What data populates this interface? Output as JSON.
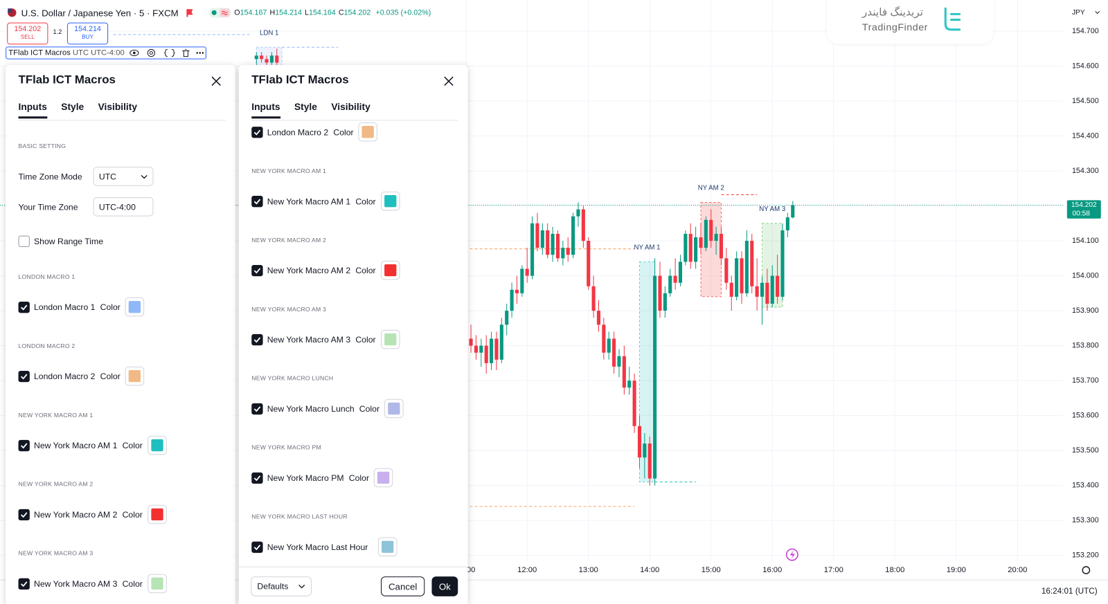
{
  "header": {
    "symbol": "U.S. Dollar / Japanese Yen · 5 · FXCM",
    "ohlc": [
      {
        "label": "O",
        "value": "154.167"
      },
      {
        "label": "H",
        "value": "154.214"
      },
      {
        "label": "L",
        "value": "154.164"
      },
      {
        "label": "C",
        "value": "154.202"
      }
    ],
    "change": "+0.035 (+0.02%)",
    "value_color": "#089981"
  },
  "order_panel": {
    "sell_price": "154.202",
    "sell_label": "SELL",
    "spread": "1.2",
    "buy_price": "154.214",
    "buy_label": "BUY"
  },
  "indicator_legend": {
    "name": "TFlab ICT Macros",
    "args": "UTC UTC-4:00"
  },
  "logo": {
    "persian": "تریدینگ فایندر",
    "latin": "TradingFinder"
  },
  "chart_data": {
    "type": "candlestick",
    "currency": "JPY",
    "up_color": "#089981",
    "down_color": "#f23645",
    "grid": true,
    "xlim": [
      "03:24",
      "20:45"
    ],
    "ylim": [
      153.184,
      154.789
    ],
    "xticks": [
      "11:00",
      "12:00",
      "13:00",
      "14:00",
      "15:00",
      "16:00",
      "17:00",
      "18:00",
      "19:00",
      "20:00"
    ],
    "yticks": [
      {
        "value": 153.2,
        "label": "153.200"
      },
      {
        "value": 153.3,
        "label": "153.300"
      },
      {
        "value": 153.4,
        "label": "153.400"
      },
      {
        "value": 153.5,
        "label": "153.500"
      },
      {
        "value": 153.6,
        "label": "153.600"
      },
      {
        "value": 153.7,
        "label": "153.700"
      },
      {
        "value": 153.8,
        "label": "153.800"
      },
      {
        "value": 153.9,
        "label": "153.900"
      },
      {
        "value": 154.0,
        "label": "154.000"
      },
      {
        "value": 154.1,
        "label": "154.100"
      },
      {
        "value": 154.2,
        "label": "154.200"
      },
      {
        "value": 154.3,
        "label": "154.300"
      },
      {
        "value": 154.4,
        "label": "154.400"
      },
      {
        "value": 154.5,
        "label": "154.500"
      },
      {
        "value": 154.6,
        "label": "154.600"
      },
      {
        "value": 154.7,
        "label": "154.700"
      }
    ],
    "candles": {
      "x": [
        "07:35",
        "07:40",
        "07:45",
        "07:50",
        "07:55",
        "11:05",
        "11:10",
        "11:15",
        "11:20",
        "11:25",
        "11:30",
        "11:35",
        "11:40",
        "11:45",
        "11:50",
        "11:55",
        "12:00",
        "12:05",
        "12:10",
        "12:15",
        "12:20",
        "12:25",
        "12:30",
        "12:35",
        "12:40",
        "12:45",
        "12:50",
        "12:55",
        "13:00",
        "13:05",
        "13:10",
        "13:15",
        "13:20",
        "13:25",
        "13:30",
        "13:35",
        "13:40",
        "13:45",
        "13:50",
        "13:55",
        "14:00",
        "14:05",
        "14:10",
        "14:15",
        "14:20",
        "14:25",
        "14:30",
        "14:35",
        "14:40",
        "14:45",
        "14:50",
        "14:55",
        "15:00",
        "15:05",
        "15:10",
        "15:15",
        "15:20",
        "15:25",
        "15:30",
        "15:35",
        "15:40",
        "15:45",
        "15:50",
        "15:55",
        "16:00",
        "16:05",
        "16:10",
        "16:15",
        "16:20"
      ],
      "open": [
        154.62,
        154.63,
        154.62,
        154.61,
        154.63,
        153.82,
        153.8,
        153.78,
        153.8,
        153.75,
        153.82,
        153.76,
        153.86,
        153.9,
        153.96,
        153.95,
        154.02,
        154.0,
        154.15,
        154.08,
        154.13,
        154.06,
        154.12,
        154.05,
        154.08,
        154.06,
        154.17,
        154.19,
        154.1,
        153.97,
        153.9,
        153.86,
        153.78,
        153.82,
        153.74,
        153.77,
        153.68,
        153.7,
        153.57,
        153.48,
        153.52,
        153.42,
        154.0,
        153.9,
        153.95,
        154.0,
        153.98,
        154.04,
        154.12,
        154.04,
        154.11,
        154.08,
        154.16,
        154.1,
        154.12,
        154.05,
        153.98,
        153.94,
        154.05,
        153.95,
        154.1,
        153.97,
        153.94,
        153.98,
        153.92,
        154.0,
        153.94,
        154.13,
        154.167
      ],
      "high": [
        154.64,
        154.64,
        154.63,
        154.64,
        154.65,
        153.86,
        153.83,
        153.82,
        153.83,
        153.84,
        153.84,
        153.88,
        153.92,
        153.98,
        154.0,
        154.03,
        154.08,
        154.17,
        154.18,
        154.15,
        154.15,
        154.14,
        154.13,
        154.1,
        154.11,
        154.18,
        154.21,
        154.2,
        154.11,
        154.0,
        153.93,
        153.88,
        153.84,
        153.84,
        153.79,
        153.8,
        153.74,
        153.72,
        153.6,
        153.55,
        153.54,
        154.05,
        154.04,
        153.97,
        154.02,
        154.05,
        154.06,
        154.13,
        154.15,
        154.14,
        154.15,
        154.17,
        154.19,
        154.14,
        154.14,
        154.08,
        154.0,
        154.07,
        154.07,
        154.13,
        154.12,
        154.05,
        154.0,
        154.02,
        154.03,
        154.06,
        154.15,
        154.18,
        154.214
      ],
      "low": [
        154.6,
        154.61,
        154.59,
        154.6,
        154.6,
        153.78,
        153.76,
        153.74,
        153.72,
        153.73,
        153.73,
        153.75,
        153.83,
        153.88,
        153.92,
        153.94,
        153.98,
        153.99,
        154.07,
        154.06,
        154.05,
        154.04,
        154.04,
        154.03,
        154.04,
        154.05,
        154.14,
        154.08,
        153.96,
        153.88,
        153.84,
        153.76,
        153.76,
        153.72,
        153.71,
        153.66,
        153.66,
        153.55,
        153.45,
        153.42,
        153.4,
        153.4,
        153.88,
        153.88,
        153.94,
        153.96,
        153.97,
        154.03,
        154.02,
        154.02,
        154.06,
        154.07,
        154.08,
        154.06,
        154.03,
        153.96,
        153.9,
        153.93,
        153.92,
        153.94,
        153.95,
        153.9,
        153.86,
        153.9,
        153.91,
        153.92,
        153.93,
        154.11,
        154.164
      ],
      "close": [
        154.63,
        154.62,
        154.61,
        154.63,
        154.61,
        153.8,
        153.78,
        153.8,
        153.75,
        153.82,
        153.76,
        153.86,
        153.9,
        153.96,
        153.95,
        154.02,
        154.0,
        154.15,
        154.08,
        154.13,
        154.06,
        154.12,
        154.05,
        154.08,
        154.06,
        154.17,
        154.19,
        154.1,
        153.97,
        153.9,
        153.86,
        153.78,
        153.82,
        153.74,
        153.77,
        153.68,
        153.7,
        153.57,
        153.48,
        153.52,
        153.42,
        154.0,
        153.9,
        153.95,
        154.0,
        153.98,
        154.04,
        154.12,
        154.04,
        154.11,
        154.08,
        154.16,
        154.1,
        154.12,
        154.05,
        153.98,
        153.94,
        154.05,
        153.95,
        154.1,
        153.97,
        153.94,
        153.98,
        153.92,
        154.0,
        153.94,
        154.13,
        154.167,
        154.202
      ]
    },
    "label_color": "#1e3a6e",
    "sessions": [
      {
        "label": "LDN 1",
        "start": "07:35",
        "end": "08:00",
        "high": 154.654,
        "low": 154.59,
        "color": "#90b8f8"
      },
      {
        "label": "NY AM 1",
        "start": "13:50",
        "end": "14:05",
        "high": 154.04,
        "low": 153.41,
        "color": "#1fbfbf"
      },
      {
        "label": "NY AM 2",
        "start": "14:50",
        "end": "15:10",
        "high": 154.21,
        "low": 153.94,
        "color": "#f23030"
      },
      {
        "label": "NY AM 3",
        "start": "15:50",
        "end": "16:10",
        "high": 154.15,
        "low": 153.91,
        "color": "#6cc267"
      }
    ],
    "levels": [
      {
        "value": 154.69,
        "start": "05:15",
        "end": "07:30",
        "color": "#90b8f8"
      },
      {
        "value": 154.654,
        "start": "08:00",
        "end": "08:55",
        "color": "#90b8f8"
      },
      {
        "value": 154.077,
        "start": "07:55",
        "end": "13:45",
        "color": "#f5a76c"
      },
      {
        "value": 153.34,
        "start": "07:55",
        "end": "13:45",
        "color": "#f5a76c"
      },
      {
        "value": 153.41,
        "start": "14:05",
        "end": "14:45",
        "color": "#1fbfbf"
      },
      {
        "value": 154.232,
        "start": "15:10",
        "end": "15:45",
        "color": "#f23030"
      }
    ],
    "last_price": {
      "value": 154.202,
      "countdown": "00:58"
    },
    "clock": "16:24:01 (UTC)"
  },
  "dialogs": [
    {
      "title": "TFlab ICT Macros",
      "tabs": [
        "Inputs",
        "Style",
        "Visibility"
      ],
      "active_tab": 0,
      "items": [
        {
          "type": "section",
          "text": "BASIC SETTING"
        },
        {
          "type": "select",
          "label": "Time Zone Mode",
          "value": "UTC"
        },
        {
          "type": "input",
          "label": "Your Time Zone",
          "value": "UTC-4:00"
        },
        {
          "type": "checkbox",
          "label": "Show Range Time",
          "checked": false
        },
        {
          "type": "section",
          "text": "LONDON MACRO 1"
        },
        {
          "type": "checkbox",
          "label": "London Macro 1",
          "checked": true,
          "color_label": "Color",
          "color": "#90b8f8"
        },
        {
          "type": "section",
          "text": "LONDON MACRO 2"
        },
        {
          "type": "checkbox",
          "label": "London Macro 2",
          "checked": true,
          "color_label": "Color",
          "color": "#f0b985"
        },
        {
          "type": "section",
          "text": "NEW YORK MACRO AM 1"
        },
        {
          "type": "checkbox",
          "label": "New York Macro AM 1",
          "checked": true,
          "color_label": "Color",
          "color": "#1fbfbf"
        },
        {
          "type": "section",
          "text": "NEW YORK MACRO AM 2"
        },
        {
          "type": "checkbox",
          "label": "New York Macro AM 2",
          "checked": true,
          "color_label": "Color",
          "color": "#f23030"
        },
        {
          "type": "section",
          "text": "NEW YORK MACRO AM 3"
        },
        {
          "type": "checkbox",
          "label": "New York Macro AM 3",
          "checked": true,
          "color_label": "Color",
          "color": "#b7e4b4"
        }
      ]
    },
    {
      "title": "TFlab ICT Macros",
      "tabs": [
        "Inputs",
        "Style",
        "Visibility"
      ],
      "active_tab": 0,
      "items": [
        {
          "type": "checkbox",
          "label": "London Macro 2",
          "checked": true,
          "color_label": "Color",
          "color": "#f0b985"
        },
        {
          "type": "section",
          "text": "NEW YORK MACRO AM 1"
        },
        {
          "type": "checkbox",
          "label": "New York Macro AM 1",
          "checked": true,
          "color_label": "Color",
          "color": "#1fbfbf"
        },
        {
          "type": "section",
          "text": "NEW YORK MACRO AM 2"
        },
        {
          "type": "checkbox",
          "label": "New York Macro AM 2",
          "checked": true,
          "color_label": "Color",
          "color": "#f23030"
        },
        {
          "type": "section",
          "text": "NEW YORK MACRO AM 3"
        },
        {
          "type": "checkbox",
          "label": "New York Macro AM 3",
          "checked": true,
          "color_label": "Color",
          "color": "#b7e4b4"
        },
        {
          "type": "section",
          "text": "NEW YORK MACRO LUNCH"
        },
        {
          "type": "checkbox",
          "label": "New York Macro Lunch",
          "checked": true,
          "color_label": "Color",
          "color": "#b0b8e8"
        },
        {
          "type": "section",
          "text": "NEW YORK MACRO PM"
        },
        {
          "type": "checkbox",
          "label": "New York Macro PM",
          "checked": true,
          "color_label": "Color",
          "color": "#c8b0ec"
        },
        {
          "type": "section",
          "text": "NEW YORK MACRO LAST HOUR"
        },
        {
          "type": "checkbox",
          "label": "New York Macro Last Hour",
          "checked": true,
          "color": "#8ec4d9"
        }
      ],
      "footer": {
        "defaults": "Defaults",
        "cancel": "Cancel",
        "ok": "Ok"
      }
    }
  ]
}
